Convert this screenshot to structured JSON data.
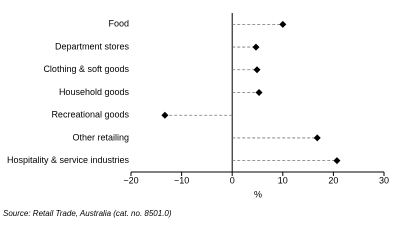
{
  "chart_data": {
    "type": "dot",
    "categories": [
      "Food",
      "Department stores",
      "Clothing & soft goods",
      "Household goods",
      "Recreational goods",
      "Other retailing",
      "Hospitality & service industries"
    ],
    "values": [
      10,
      4.7,
      4.9,
      5.3,
      -13.3,
      16.8,
      20.7
    ],
    "color": "#000000",
    "xlim": [
      -20,
      30
    ],
    "xticks": [
      {
        "value": -20,
        "label": "−20"
      },
      {
        "value": -10,
        "label": "−10"
      },
      0,
      10,
      20,
      30
    ],
    "x_label": "%",
    "source": "Source: Retail Trade, Australia (cat. no. 8501.0)"
  }
}
